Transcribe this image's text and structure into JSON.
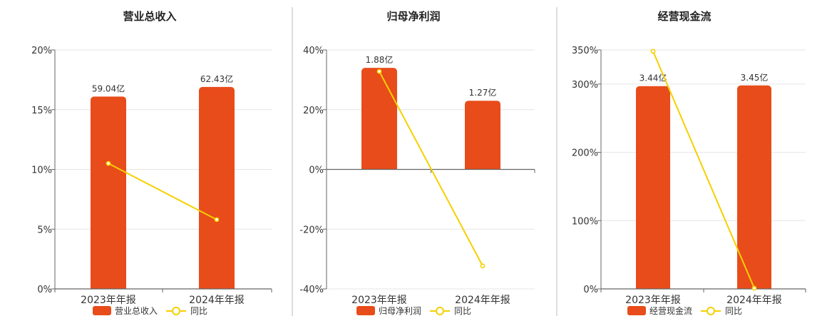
{
  "chart_data": [
    {
      "type": "bar",
      "title": "营业总收入",
      "categories": [
        "2023年年报",
        "2024年年报"
      ],
      "series": [
        {
          "name": "营业总收入",
          "type": "bar",
          "values": [
            16.1,
            16.9
          ],
          "labels": [
            "59.04亿",
            "62.43亿"
          ],
          "color": "#e84c1a"
        },
        {
          "name": "同比",
          "type": "line",
          "values": [
            10.5,
            5.8
          ],
          "color": "#f5d000"
        }
      ],
      "ylim": [
        0,
        20
      ],
      "yticks": [
        "0%",
        "5%",
        "10%",
        "15%",
        "20%"
      ],
      "grid": true,
      "legend": "bottom"
    },
    {
      "type": "bar",
      "title": "归母净利润",
      "categories": [
        "2023年年报",
        "2024年年报"
      ],
      "series": [
        {
          "name": "归母净利润",
          "type": "bar",
          "values": [
            34.0,
            23.0
          ],
          "labels": [
            "1.88亿",
            "1.27亿"
          ],
          "color": "#e84c1a"
        },
        {
          "name": "同比",
          "type": "line",
          "values": [
            32.8,
            -32.3
          ],
          "color": "#f5d000"
        }
      ],
      "ylim": [
        -40,
        40
      ],
      "yticks": [
        "-40%",
        "-20%",
        "0%",
        "20%",
        "40%"
      ],
      "grid": true,
      "legend": "bottom"
    },
    {
      "type": "bar",
      "title": "经营现金流",
      "categories": [
        "2023年年报",
        "2024年年报"
      ],
      "series": [
        {
          "name": "经营现金流",
          "type": "bar",
          "values": [
            297,
            298
          ],
          "labels": [
            "3.44亿",
            "3.45亿"
          ],
          "color": "#e84c1a"
        },
        {
          "name": "同比",
          "type": "line",
          "values": [
            348,
            1
          ],
          "color": "#f5d000"
        }
      ],
      "ylim": [
        0,
        350
      ],
      "ytick_values": [
        0,
        100,
        200,
        300,
        350
      ],
      "yticks": [
        "0%",
        "100%",
        "200%",
        "300%",
        "350%"
      ],
      "grid": true,
      "legend": "bottom"
    }
  ]
}
